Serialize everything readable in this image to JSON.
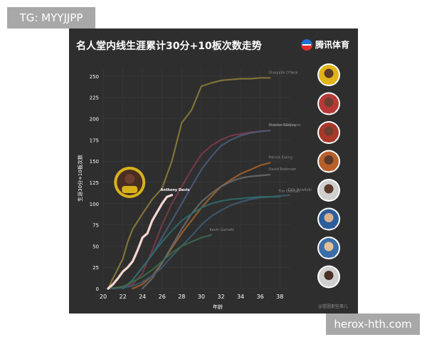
{
  "watermark_top": "TG: MYYJJPP",
  "watermark_bottom": "herox-hth.com",
  "title": "名人堂内线生涯累计30分+10板次数走势",
  "brand": "腾讯体育",
  "credit": "@篮圈那些事儿",
  "colors": {
    "panel_bg": "#2e2e2e",
    "grid": "#3d3d3d",
    "axis_text": "#ffffff",
    "highlight": "#f4d6d0"
  },
  "icons": [
    "tencent-sports-logo",
    "player-portrait"
  ],
  "chart_data": {
    "type": "line",
    "title": "名人堂内线生涯累计30分+10板次数走势",
    "xlabel": "年龄",
    "ylabel": "生涯30分+10板次数",
    "xlim": [
      20,
      39
    ],
    "ylim": [
      0,
      260
    ],
    "xticks": [
      20,
      22,
      24,
      26,
      28,
      30,
      32,
      34,
      36,
      38
    ],
    "yticks": [
      0,
      25,
      50,
      75,
      100,
      125,
      150,
      175,
      200,
      225,
      250
    ],
    "grid": true,
    "legend": "right",
    "series": [
      {
        "name": "Shaquille O'Neal",
        "color": "#8a7a3a",
        "x": [
          20.5,
          21,
          22,
          22.5,
          23,
          24,
          25,
          26,
          27,
          28,
          29,
          30,
          31,
          32,
          33,
          34,
          35,
          36,
          37
        ],
        "y": [
          0,
          12,
          35,
          55,
          70,
          88,
          105,
          118,
          150,
          195,
          210,
          238,
          242,
          245,
          246,
          247,
          247,
          248,
          248
        ]
      },
      {
        "name": "Charles Barkley",
        "color": "#7a3a4a",
        "x": [
          21,
          23,
          24,
          25,
          26,
          27,
          28,
          29,
          30,
          31,
          32,
          33,
          34,
          35,
          36,
          37
        ],
        "y": [
          0,
          5,
          18,
          45,
          75,
          100,
          120,
          140,
          158,
          168,
          175,
          180,
          182,
          184,
          185,
          186
        ]
      },
      {
        "name": "Hakeem Olajuwon",
        "color": "#4a5a7a",
        "x": [
          22,
          23,
          24,
          25,
          26,
          27,
          28,
          29,
          30,
          31,
          32,
          33,
          34,
          35,
          36,
          37
        ],
        "y": [
          0,
          10,
          25,
          40,
          60,
          80,
          100,
          120,
          140,
          155,
          168,
          175,
          180,
          183,
          185,
          186
        ]
      },
      {
        "name": "Patrick Ewing",
        "color": "#a0602a",
        "x": [
          23,
          24,
          25,
          26,
          27,
          28,
          29,
          30,
          31,
          32,
          33,
          34,
          35,
          36,
          37
        ],
        "y": [
          0,
          5,
          15,
          30,
          48,
          65,
          80,
          95,
          108,
          120,
          128,
          135,
          140,
          145,
          148
        ]
      },
      {
        "name": "David Robinson",
        "color": "#6a6a6a",
        "x": [
          24,
          25,
          26,
          27,
          28,
          29,
          30,
          31,
          32,
          33,
          34,
          35,
          36,
          37
        ],
        "y": [
          0,
          12,
          30,
          50,
          70,
          88,
          102,
          112,
          120,
          126,
          130,
          132,
          133,
          134
        ]
      },
      {
        "name": "Dirk Nowitzki",
        "color": "#3e5a70",
        "x": [
          21,
          22,
          23,
          24,
          25,
          26,
          27,
          28,
          29,
          30,
          31,
          32,
          33,
          34,
          35,
          36,
          37,
          38,
          39
        ],
        "y": [
          0,
          1,
          3,
          8,
          15,
          25,
          38,
          50,
          62,
          75,
          85,
          92,
          98,
          102,
          105,
          107,
          108,
          109,
          110
        ]
      },
      {
        "name": "Tim Duncan",
        "color": "#2e6a6a",
        "x": [
          22,
          23,
          24,
          25,
          26,
          27,
          28,
          29,
          30,
          31,
          32,
          33,
          34,
          35,
          36,
          37,
          38
        ],
        "y": [
          0,
          10,
          25,
          40,
          55,
          68,
          80,
          88,
          95,
          100,
          103,
          105,
          106,
          107,
          108,
          108,
          108
        ]
      },
      {
        "name": "Kevin Garnett",
        "color": "#3a6a4a",
        "x": [
          20.5,
          22,
          23,
          24,
          25,
          26,
          27,
          28,
          29,
          30,
          31
        ],
        "y": [
          0,
          2,
          8,
          14,
          22,
          32,
          42,
          50,
          55,
          60,
          63
        ]
      },
      {
        "name": "Anthony Davis",
        "color": "#f4d6d0",
        "highlight": true,
        "x": [
          20.5,
          21,
          21.5,
          22,
          22.5,
          23,
          23.5,
          24,
          24.5,
          25,
          25.5,
          26,
          26.5,
          27
        ],
        "y": [
          0,
          5,
          12,
          20,
          25,
          32,
          45,
          60,
          65,
          80,
          90,
          100,
          108,
          110
        ]
      }
    ]
  }
}
